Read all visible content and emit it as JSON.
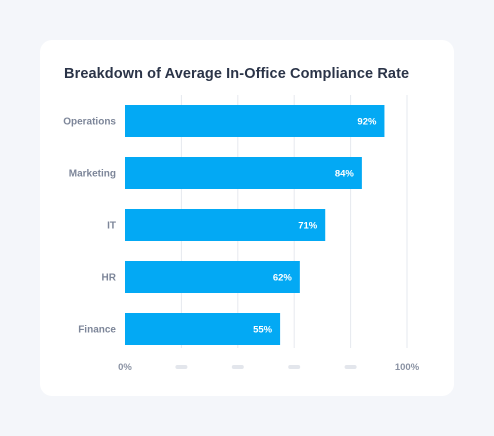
{
  "chart_data": {
    "type": "bar",
    "orientation": "horizontal",
    "title": "Breakdown of Average In-Office Compliance Rate",
    "categories": [
      "Operations",
      "Marketing",
      "IT",
      "HR",
      "Finance"
    ],
    "values": [
      92,
      84,
      71,
      62,
      55
    ],
    "value_labels": [
      "92%",
      "84%",
      "71%",
      "62%",
      "55%"
    ],
    "xlim": [
      0,
      100
    ],
    "x_tick_labels": [
      "0%",
      "100%"
    ],
    "grid": true,
    "bar_color": "#03a9f4"
  }
}
